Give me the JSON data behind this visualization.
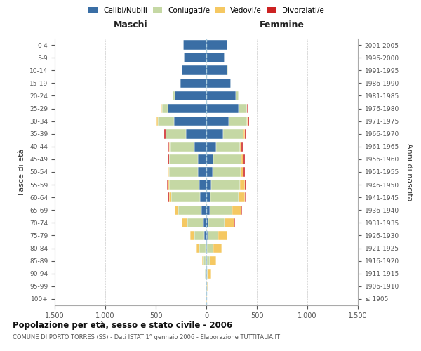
{
  "age_groups": [
    "100+",
    "95-99",
    "90-94",
    "85-89",
    "80-84",
    "75-79",
    "70-74",
    "65-69",
    "60-64",
    "55-59",
    "50-54",
    "45-49",
    "40-44",
    "35-39",
    "30-34",
    "25-29",
    "20-24",
    "15-19",
    "10-14",
    "5-9",
    "0-4"
  ],
  "birth_years": [
    "≤ 1905",
    "1906-1910",
    "1911-1915",
    "1916-1920",
    "1921-1925",
    "1926-1930",
    "1931-1935",
    "1936-1940",
    "1941-1945",
    "1946-1950",
    "1951-1955",
    "1956-1960",
    "1961-1965",
    "1966-1970",
    "1971-1975",
    "1976-1980",
    "1981-1985",
    "1986-1990",
    "1991-1995",
    "1996-2000",
    "2001-2005"
  ],
  "colors": {
    "celibi": "#3a6ea5",
    "coniugati": "#c5d8a4",
    "vedovi": "#f5c862",
    "divorziati": "#cc2222"
  },
  "maschi": {
    "celibi": [
      2,
      2,
      3,
      5,
      10,
      20,
      30,
      50,
      60,
      70,
      80,
      85,
      120,
      200,
      320,
      380,
      310,
      260,
      240,
      220,
      230
    ],
    "coniugati": [
      0,
      2,
      8,
      25,
      60,
      100,
      160,
      230,
      290,
      300,
      290,
      280,
      240,
      200,
      160,
      60,
      20,
      5,
      2,
      0,
      0
    ],
    "vedovi": [
      0,
      2,
      5,
      15,
      30,
      40,
      50,
      30,
      20,
      10,
      5,
      5,
      5,
      5,
      15,
      5,
      0,
      0,
      0,
      0,
      0
    ],
    "divorziati": [
      0,
      0,
      0,
      0,
      0,
      0,
      2,
      5,
      10,
      10,
      10,
      10,
      10,
      10,
      5,
      0,
      0,
      0,
      0,
      0,
      0
    ]
  },
  "femmine": {
    "celibi": [
      2,
      2,
      5,
      8,
      10,
      15,
      20,
      35,
      40,
      50,
      60,
      70,
      100,
      170,
      220,
      320,
      290,
      240,
      210,
      180,
      210
    ],
    "coniugati": [
      0,
      3,
      12,
      30,
      60,
      100,
      160,
      220,
      280,
      280,
      280,
      280,
      230,
      200,
      180,
      80,
      30,
      5,
      2,
      0,
      0
    ],
    "vedovi": [
      2,
      10,
      30,
      60,
      80,
      90,
      100,
      90,
      60,
      50,
      30,
      20,
      15,
      10,
      10,
      5,
      0,
      0,
      0,
      0,
      0
    ],
    "divorziati": [
      0,
      0,
      0,
      0,
      0,
      2,
      3,
      8,
      10,
      15,
      15,
      15,
      15,
      15,
      15,
      5,
      0,
      0,
      0,
      0,
      0
    ]
  },
  "xlim": 1500,
  "title": "Popolazione per età, sesso e stato civile - 2006",
  "subtitle": "COMUNE DI PORTO TORRES (SS) - Dati ISTAT 1° gennaio 2006 - Elaborazione TUTTITALIA.IT",
  "ylabel": "Fasce di età",
  "ylabel_right": "Anni di nascita",
  "xlabel_left": "Maschi",
  "xlabel_right": "Femmine",
  "xticks": [
    -1500,
    -1000,
    -500,
    0,
    500,
    1000,
    1500
  ],
  "xtick_labels": [
    "1.500",
    "1.000",
    "500",
    "0",
    "500",
    "1.000",
    "1.500"
  ],
  "background": "#ffffff",
  "grid_color": "#cccccc"
}
